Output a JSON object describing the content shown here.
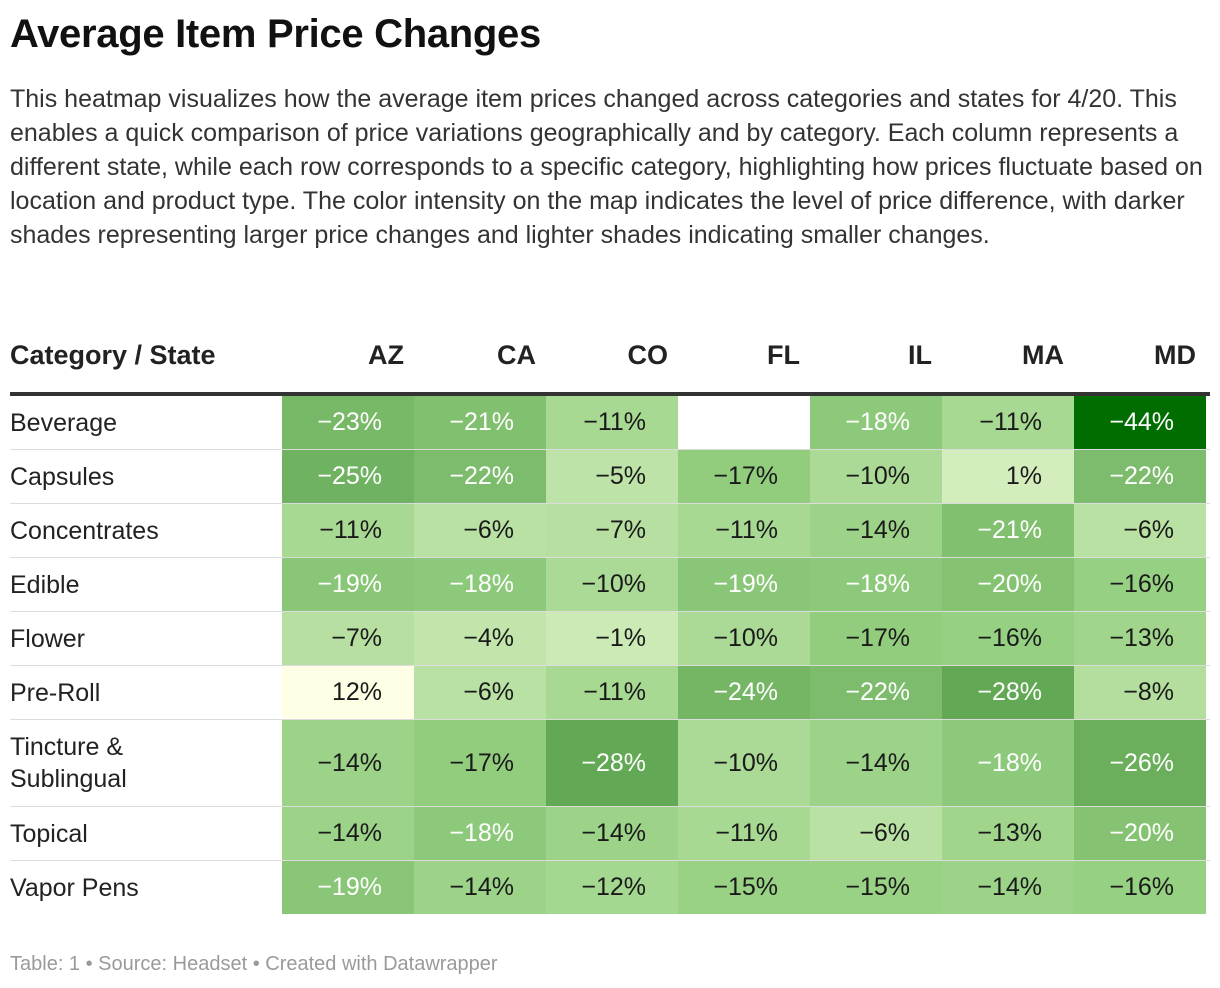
{
  "title": "Average Item Price Changes",
  "description": "This heatmap visualizes how the average item prices changed across categories and states for 4/20. This enables a quick comparison of price variations geographically and by category. Each column represents a different state, while each row corresponds to a specific category, highlighting how prices fluctuate based on location and product type. The color intensity on the map indicates the level of price difference, with darker shades representing larger price changes and lighter shades indicating smaller changes.",
  "footer": "Table: 1 • Source: Headset • Created with Datawrapper",
  "chart_data": {
    "type": "heatmap",
    "corner_label": "Category / State",
    "columns": [
      "AZ",
      "CA",
      "CO",
      "FL",
      "IL",
      "MA",
      "MD"
    ],
    "rows": [
      {
        "category": "Beverage",
        "values": [
          -23,
          -21,
          -11,
          null,
          -18,
          -11,
          -44
        ]
      },
      {
        "category": "Capsules",
        "values": [
          -25,
          -22,
          -5,
          -17,
          -10,
          1,
          -22
        ]
      },
      {
        "category": "Concentrates",
        "values": [
          -11,
          -6,
          -7,
          -11,
          -14,
          -21,
          -6
        ]
      },
      {
        "category": "Edible",
        "values": [
          -19,
          -18,
          -10,
          -19,
          -18,
          -20,
          -16
        ]
      },
      {
        "category": "Flower",
        "values": [
          -7,
          -4,
          -1,
          -10,
          -17,
          -16,
          -13
        ]
      },
      {
        "category": "Pre-Roll",
        "values": [
          12,
          -6,
          -11,
          -24,
          -22,
          -28,
          -8
        ]
      },
      {
        "category": "Tincture & Sublingual",
        "values": [
          -14,
          -17,
          -28,
          -10,
          -14,
          -18,
          -26
        ]
      },
      {
        "category": "Topical",
        "values": [
          -14,
          -18,
          -14,
          -11,
          -6,
          -13,
          -20
        ]
      },
      {
        "category": "Vapor Pens",
        "values": [
          -19,
          -14,
          -12,
          -15,
          -15,
          -14,
          -16
        ]
      }
    ],
    "value_format": "percent",
    "color_scale": {
      "low": "#ffffe5",
      "high": "#006d00",
      "domain": [
        12,
        -44
      ]
    }
  }
}
